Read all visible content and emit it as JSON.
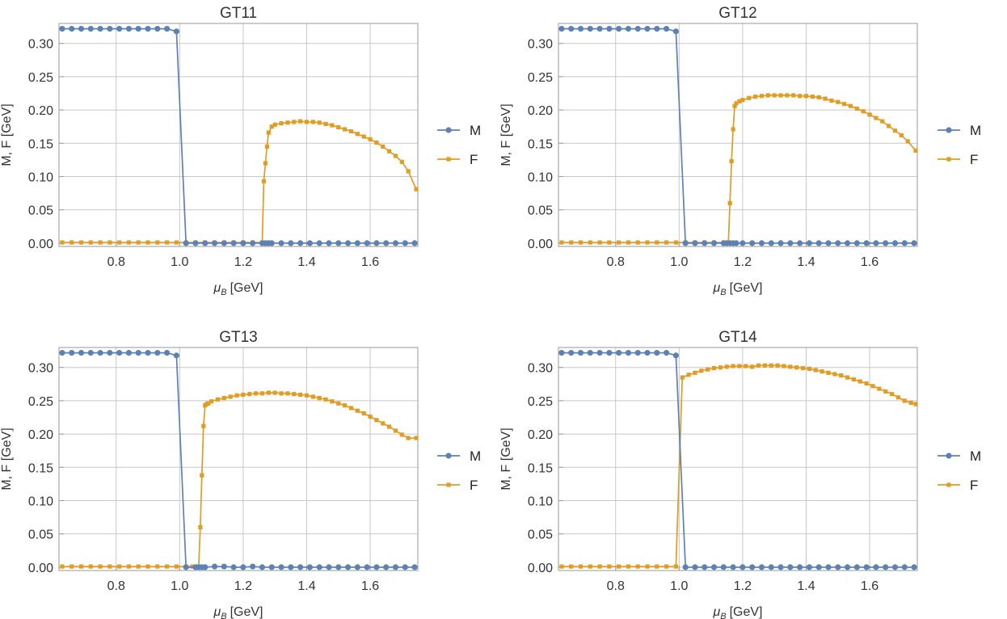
{
  "figure": {
    "legend": [
      {
        "name": "M",
        "color": "#5E81B5",
        "marker": "circle"
      },
      {
        "name": "F",
        "color": "#E19C24",
        "marker": "square"
      }
    ]
  },
  "chart_data": [
    {
      "type": "line",
      "title": "GT11",
      "xlabel_main": "μ",
      "xlabel_sub": "B",
      "xlabel_unit": "[GeV]",
      "ylabel": "M, F [GeV]",
      "xlim": [
        0.62,
        1.75
      ],
      "ylim": [
        -0.005,
        0.33
      ],
      "xticks": [
        0.8,
        1.0,
        1.2,
        1.4,
        1.6
      ],
      "xtick_labels": [
        "0.8",
        "1.0",
        "1.2",
        "1.4",
        "1.6"
      ],
      "yticks": [
        0.0,
        0.05,
        0.1,
        0.15,
        0.2,
        0.25,
        0.3
      ],
      "ytick_labels": [
        "0.00",
        "0.05",
        "0.10",
        "0.15",
        "0.20",
        "0.25",
        "0.30"
      ],
      "series": [
        {
          "name": "M",
          "color": "#5E81B5",
          "marker": "circle",
          "x": [
            0.63,
            0.66,
            0.69,
            0.72,
            0.75,
            0.78,
            0.81,
            0.84,
            0.87,
            0.9,
            0.93,
            0.96,
            0.99,
            1.02,
            1.05,
            1.08,
            1.11,
            1.14,
            1.17,
            1.2,
            1.23,
            1.26,
            1.27,
            1.28,
            1.29,
            1.32,
            1.35,
            1.38,
            1.41,
            1.44,
            1.47,
            1.5,
            1.53,
            1.56,
            1.59,
            1.62,
            1.65,
            1.68,
            1.71,
            1.74
          ],
          "y": [
            0.322,
            0.322,
            0.322,
            0.322,
            0.322,
            0.322,
            0.322,
            0.322,
            0.322,
            0.322,
            0.322,
            0.322,
            0.318,
            0,
            0,
            0,
            0,
            0,
            0,
            0,
            0,
            0,
            0,
            0,
            0,
            0,
            0,
            0,
            0,
            0,
            0,
            0,
            0,
            0,
            0,
            0,
            0,
            0,
            0,
            0
          ]
        },
        {
          "name": "F",
          "color": "#E19C24",
          "marker": "square",
          "x": [
            0.63,
            0.66,
            0.69,
            0.72,
            0.75,
            0.78,
            0.81,
            0.84,
            0.87,
            0.9,
            0.93,
            0.96,
            0.99,
            1.02,
            1.05,
            1.08,
            1.11,
            1.14,
            1.17,
            1.2,
            1.23,
            1.26,
            1.265,
            1.27,
            1.275,
            1.28,
            1.29,
            1.3,
            1.32,
            1.34,
            1.36,
            1.38,
            1.4,
            1.42,
            1.44,
            1.46,
            1.48,
            1.5,
            1.52,
            1.54,
            1.56,
            1.58,
            1.6,
            1.62,
            1.64,
            1.66,
            1.68,
            1.7,
            1.72,
            1.745
          ],
          "y": [
            0.001,
            0.001,
            0.001,
            0.001,
            0.001,
            0.001,
            0.001,
            0.001,
            0.001,
            0.001,
            0.001,
            0.001,
            0.001,
            0.001,
            0.001,
            0.001,
            0.001,
            0.001,
            0.001,
            0.001,
            0.001,
            0.001,
            0.093,
            0.12,
            0.145,
            0.166,
            0.175,
            0.178,
            0.18,
            0.181,
            0.182,
            0.183,
            0.182,
            0.182,
            0.181,
            0.179,
            0.177,
            0.174,
            0.171,
            0.168,
            0.164,
            0.16,
            0.156,
            0.151,
            0.145,
            0.138,
            0.131,
            0.122,
            0.108,
            0.081
          ]
        }
      ]
    },
    {
      "type": "line",
      "title": "GT12",
      "xlabel_main": "μ",
      "xlabel_sub": "B",
      "xlabel_unit": "[GeV]",
      "ylabel": "M, F [GeV]",
      "xlim": [
        0.62,
        1.75
      ],
      "ylim": [
        -0.005,
        0.33
      ],
      "xticks": [
        0.8,
        1.0,
        1.2,
        1.4,
        1.6
      ],
      "xtick_labels": [
        "0.8",
        "1.0",
        "1.2",
        "1.4",
        "1.6"
      ],
      "yticks": [
        0.0,
        0.05,
        0.1,
        0.15,
        0.2,
        0.25,
        0.3
      ],
      "ytick_labels": [
        "0.00",
        "0.05",
        "0.10",
        "0.15",
        "0.20",
        "0.25",
        "0.30"
      ],
      "series": [
        {
          "name": "M",
          "color": "#5E81B5",
          "marker": "circle",
          "x": [
            0.63,
            0.66,
            0.69,
            0.72,
            0.75,
            0.78,
            0.81,
            0.84,
            0.87,
            0.9,
            0.93,
            0.96,
            0.99,
            1.02,
            1.05,
            1.08,
            1.11,
            1.14,
            1.15,
            1.16,
            1.17,
            1.18,
            1.2,
            1.23,
            1.26,
            1.29,
            1.32,
            1.35,
            1.38,
            1.41,
            1.44,
            1.47,
            1.5,
            1.53,
            1.56,
            1.59,
            1.62,
            1.65,
            1.68,
            1.71,
            1.74
          ],
          "y": [
            0.322,
            0.322,
            0.322,
            0.322,
            0.322,
            0.322,
            0.322,
            0.322,
            0.322,
            0.322,
            0.322,
            0.322,
            0.318,
            0,
            0,
            0,
            0,
            0,
            0,
            0,
            0,
            0,
            0,
            0,
            0,
            0,
            0,
            0,
            0,
            0,
            0,
            0,
            0,
            0,
            0,
            0,
            0,
            0,
            0,
            0,
            0
          ]
        },
        {
          "name": "F",
          "color": "#E19C24",
          "marker": "square",
          "x": [
            0.63,
            0.66,
            0.69,
            0.72,
            0.75,
            0.78,
            0.81,
            0.84,
            0.87,
            0.9,
            0.93,
            0.96,
            0.99,
            1.02,
            1.05,
            1.08,
            1.11,
            1.14,
            1.155,
            1.16,
            1.165,
            1.17,
            1.175,
            1.18,
            1.19,
            1.2,
            1.22,
            1.24,
            1.26,
            1.28,
            1.3,
            1.32,
            1.34,
            1.36,
            1.38,
            1.4,
            1.42,
            1.44,
            1.46,
            1.48,
            1.5,
            1.52,
            1.54,
            1.56,
            1.58,
            1.6,
            1.62,
            1.64,
            1.66,
            1.68,
            1.7,
            1.72,
            1.745
          ],
          "y": [
            0.001,
            0.001,
            0.001,
            0.001,
            0.001,
            0.001,
            0.001,
            0.001,
            0.001,
            0.001,
            0.001,
            0.001,
            0.001,
            0.001,
            0.001,
            0.001,
            0.001,
            0.001,
            0.001,
            0.06,
            0.123,
            0.171,
            0.206,
            0.21,
            0.213,
            0.215,
            0.218,
            0.22,
            0.221,
            0.222,
            0.222,
            0.222,
            0.222,
            0.222,
            0.221,
            0.221,
            0.22,
            0.219,
            0.217,
            0.214,
            0.212,
            0.209,
            0.206,
            0.202,
            0.198,
            0.193,
            0.188,
            0.183,
            0.176,
            0.169,
            0.162,
            0.153,
            0.139
          ]
        }
      ]
    },
    {
      "type": "line",
      "title": "GT13",
      "xlabel_main": "μ",
      "xlabel_sub": "B",
      "xlabel_unit": "[GeV]",
      "ylabel": "M, F [GeV]",
      "xlim": [
        0.62,
        1.75
      ],
      "ylim": [
        -0.005,
        0.33
      ],
      "xticks": [
        0.8,
        1.0,
        1.2,
        1.4,
        1.6
      ],
      "xtick_labels": [
        "0.8",
        "1.0",
        "1.2",
        "1.4",
        "1.6"
      ],
      "yticks": [
        0.0,
        0.05,
        0.1,
        0.15,
        0.2,
        0.25,
        0.3
      ],
      "ytick_labels": [
        "0.00",
        "0.05",
        "0.10",
        "0.15",
        "0.20",
        "0.25",
        "0.30"
      ],
      "series": [
        {
          "name": "M",
          "color": "#5E81B5",
          "marker": "circle",
          "x": [
            0.63,
            0.66,
            0.69,
            0.72,
            0.75,
            0.78,
            0.81,
            0.84,
            0.87,
            0.9,
            0.93,
            0.96,
            0.99,
            1.02,
            1.05,
            1.06,
            1.07,
            1.08,
            1.11,
            1.14,
            1.17,
            1.2,
            1.23,
            1.26,
            1.29,
            1.32,
            1.35,
            1.38,
            1.41,
            1.44,
            1.47,
            1.5,
            1.53,
            1.56,
            1.59,
            1.62,
            1.65,
            1.68,
            1.71,
            1.74
          ],
          "y": [
            0.322,
            0.322,
            0.322,
            0.322,
            0.322,
            0.322,
            0.322,
            0.322,
            0.322,
            0.322,
            0.322,
            0.322,
            0.318,
            0,
            0,
            0,
            0,
            0,
            0.001,
            0.001,
            0,
            0,
            0.001,
            0,
            0,
            0,
            0,
            0,
            0,
            0,
            0,
            0,
            0,
            0,
            0,
            0,
            0,
            0,
            0,
            0
          ]
        },
        {
          "name": "F",
          "color": "#E19C24",
          "marker": "square",
          "x": [
            0.63,
            0.66,
            0.69,
            0.72,
            0.75,
            0.78,
            0.81,
            0.84,
            0.87,
            0.9,
            0.93,
            0.96,
            0.99,
            1.02,
            1.04,
            1.05,
            1.06,
            1.065,
            1.07,
            1.075,
            1.08,
            1.085,
            1.09,
            1.1,
            1.12,
            1.14,
            1.16,
            1.18,
            1.2,
            1.22,
            1.24,
            1.26,
            1.28,
            1.3,
            1.32,
            1.34,
            1.36,
            1.38,
            1.4,
            1.42,
            1.44,
            1.46,
            1.48,
            1.5,
            1.52,
            1.54,
            1.56,
            1.58,
            1.6,
            1.62,
            1.64,
            1.66,
            1.68,
            1.7,
            1.72,
            1.745
          ],
          "y": [
            0.001,
            0.001,
            0.001,
            0.001,
            0.001,
            0.001,
            0.001,
            0.001,
            0.001,
            0.001,
            0.001,
            0.001,
            0.001,
            0.001,
            0.001,
            0.001,
            0.001,
            0.06,
            0.138,
            0.212,
            0.243,
            0.245,
            0.246,
            0.249,
            0.252,
            0.254,
            0.256,
            0.258,
            0.259,
            0.26,
            0.261,
            0.261,
            0.262,
            0.262,
            0.261,
            0.261,
            0.26,
            0.259,
            0.258,
            0.256,
            0.254,
            0.252,
            0.249,
            0.246,
            0.243,
            0.239,
            0.235,
            0.231,
            0.226,
            0.221,
            0.216,
            0.211,
            0.205,
            0.199,
            0.194,
            0.194
          ]
        }
      ]
    },
    {
      "type": "line",
      "title": "GT14",
      "xlabel_main": "μ",
      "xlabel_sub": "B",
      "xlabel_unit": "[GeV]",
      "ylabel": "M, F [GeV]",
      "xlim": [
        0.62,
        1.75
      ],
      "ylim": [
        -0.005,
        0.33
      ],
      "xticks": [
        0.8,
        1.0,
        1.2,
        1.4,
        1.6
      ],
      "xtick_labels": [
        "0.8",
        "1.0",
        "1.2",
        "1.4",
        "1.6"
      ],
      "yticks": [
        0.0,
        0.05,
        0.1,
        0.15,
        0.2,
        0.25,
        0.3
      ],
      "ytick_labels": [
        "0.00",
        "0.05",
        "0.10",
        "0.15",
        "0.20",
        "0.25",
        "0.30"
      ],
      "series": [
        {
          "name": "M",
          "color": "#5E81B5",
          "marker": "circle",
          "x": [
            0.63,
            0.66,
            0.69,
            0.72,
            0.75,
            0.78,
            0.81,
            0.84,
            0.87,
            0.9,
            0.93,
            0.96,
            0.99,
            1.02,
            1.05,
            1.08,
            1.11,
            1.14,
            1.17,
            1.2,
            1.23,
            1.26,
            1.29,
            1.32,
            1.35,
            1.38,
            1.41,
            1.44,
            1.47,
            1.5,
            1.53,
            1.56,
            1.59,
            1.62,
            1.65,
            1.68,
            1.71,
            1.74
          ],
          "y": [
            0.322,
            0.322,
            0.322,
            0.322,
            0.322,
            0.322,
            0.322,
            0.322,
            0.322,
            0.322,
            0.322,
            0.322,
            0.318,
            0,
            0,
            0,
            0,
            0,
            0,
            0,
            0,
            0,
            0,
            0,
            0,
            0,
            0,
            0,
            0,
            0,
            0,
            0,
            0,
            0,
            0,
            0,
            0,
            0
          ]
        },
        {
          "name": "F",
          "color": "#E19C24",
          "marker": "square",
          "x": [
            0.63,
            0.66,
            0.69,
            0.72,
            0.75,
            0.78,
            0.81,
            0.84,
            0.87,
            0.9,
            0.93,
            0.96,
            0.99,
            1.01,
            1.03,
            1.05,
            1.07,
            1.09,
            1.11,
            1.13,
            1.15,
            1.17,
            1.19,
            1.21,
            1.23,
            1.25,
            1.27,
            1.29,
            1.31,
            1.33,
            1.35,
            1.37,
            1.39,
            1.41,
            1.43,
            1.45,
            1.47,
            1.49,
            1.51,
            1.53,
            1.55,
            1.57,
            1.59,
            1.61,
            1.63,
            1.65,
            1.67,
            1.69,
            1.71,
            1.73,
            1.745
          ],
          "y": [
            0.001,
            0.001,
            0.001,
            0.001,
            0.001,
            0.001,
            0.001,
            0.001,
            0.001,
            0.001,
            0.001,
            0.001,
            0.001,
            0.285,
            0.289,
            0.292,
            0.295,
            0.297,
            0.299,
            0.3,
            0.301,
            0.302,
            0.302,
            0.302,
            0.301,
            0.303,
            0.303,
            0.303,
            0.303,
            0.302,
            0.301,
            0.3,
            0.299,
            0.298,
            0.296,
            0.294,
            0.292,
            0.29,
            0.288,
            0.285,
            0.282,
            0.279,
            0.276,
            0.272,
            0.268,
            0.264,
            0.26,
            0.255,
            0.25,
            0.247,
            0.245
          ]
        }
      ]
    }
  ]
}
